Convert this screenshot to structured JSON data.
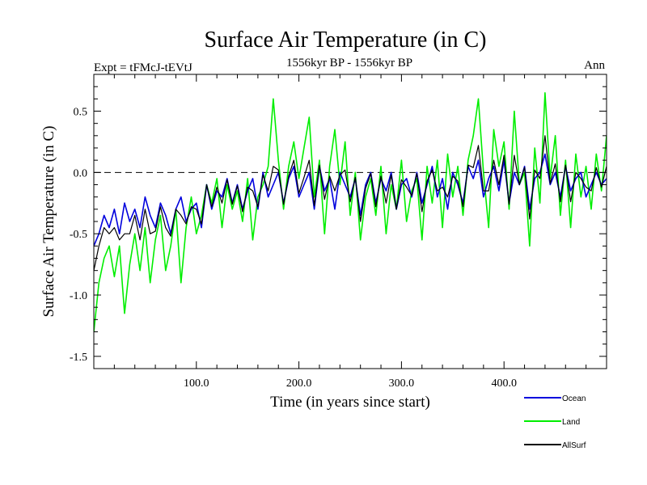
{
  "chart_data": {
    "type": "line",
    "title": "Surface Air Temperature (in C)",
    "subtitle_left": "Expt = tFMcJ-tEVtJ",
    "subtitle_center": "1556kyr BP - 1556kyr BP",
    "subtitle_right": "Ann",
    "xlabel": "Time (in years since start)",
    "ylabel": "Surface Air Temperature (in C)",
    "xlim": [
      0,
      500
    ],
    "ylim": [
      -1.6,
      0.8
    ],
    "xticks": [
      100,
      200,
      300,
      400
    ],
    "xtick_labels": [
      "100.0",
      "200.0",
      "300.0",
      "400.0"
    ],
    "yticks": [
      -1.5,
      -1.0,
      -0.5,
      0.0,
      0.5
    ],
    "ytick_labels": [
      "-1.5",
      "-1.0",
      "-0.5",
      "0.0",
      "0.5"
    ],
    "reference_line": {
      "y": 0.0,
      "style": "dashed"
    },
    "series": [
      {
        "name": "Land",
        "color": "#00ee00",
        "x": [
          0,
          5,
          10,
          15,
          20,
          25,
          30,
          35,
          40,
          45,
          50,
          55,
          60,
          65,
          70,
          75,
          80,
          85,
          90,
          95,
          100,
          105,
          110,
          115,
          120,
          125,
          130,
          135,
          140,
          145,
          150,
          155,
          160,
          165,
          170,
          175,
          180,
          185,
          190,
          195,
          200,
          205,
          210,
          215,
          220,
          225,
          230,
          235,
          240,
          245,
          250,
          255,
          260,
          265,
          270,
          275,
          280,
          285,
          290,
          295,
          300,
          305,
          310,
          315,
          320,
          325,
          330,
          335,
          340,
          345,
          350,
          355,
          360,
          365,
          370,
          375,
          380,
          385,
          390,
          395,
          400,
          405,
          410,
          415,
          420,
          425,
          430,
          435,
          440,
          445,
          450,
          455,
          460,
          465,
          470,
          475,
          480,
          485,
          490,
          495,
          500
        ],
        "values": [
          -1.3,
          -0.9,
          -0.7,
          -0.6,
          -0.85,
          -0.6,
          -1.15,
          -0.75,
          -0.5,
          -0.8,
          -0.45,
          -0.9,
          -0.55,
          -0.35,
          -0.8,
          -0.6,
          -0.3,
          -0.9,
          -0.45,
          -0.2,
          -0.5,
          -0.35,
          -0.1,
          -0.25,
          -0.05,
          -0.45,
          -0.1,
          -0.3,
          -0.15,
          -0.4,
          -0.05,
          -0.55,
          -0.2,
          -0.1,
          0.05,
          0.6,
          0.1,
          -0.3,
          0.05,
          0.25,
          -0.05,
          0.2,
          0.45,
          -0.2,
          0.1,
          -0.5,
          0.05,
          0.35,
          -0.1,
          0.25,
          -0.35,
          0.0,
          -0.55,
          -0.2,
          -0.05,
          -0.35,
          0.05,
          -0.5,
          -0.1,
          -0.3,
          0.1,
          -0.4,
          -0.15,
          -0.05,
          -0.55,
          0.05,
          -0.25,
          0.1,
          -0.45,
          0.15,
          -0.2,
          0.05,
          -0.35,
          0.1,
          0.3,
          0.6,
          0.0,
          -0.45,
          0.35,
          0.05,
          0.25,
          -0.3,
          0.5,
          -0.1,
          0.0,
          -0.6,
          0.2,
          -0.25,
          0.65,
          -0.05,
          0.3,
          -0.35,
          0.1,
          -0.45,
          0.15,
          -0.2,
          0.05,
          -0.3,
          0.15,
          -0.15,
          0.3
        ]
      },
      {
        "name": "Ocean",
        "color": "#0000dd",
        "x": [
          0,
          5,
          10,
          15,
          20,
          25,
          30,
          35,
          40,
          45,
          50,
          55,
          60,
          65,
          70,
          75,
          80,
          85,
          90,
          95,
          100,
          105,
          110,
          115,
          120,
          125,
          130,
          135,
          140,
          145,
          150,
          155,
          160,
          165,
          170,
          175,
          180,
          185,
          190,
          195,
          200,
          205,
          210,
          215,
          220,
          225,
          230,
          235,
          240,
          245,
          250,
          255,
          260,
          265,
          270,
          275,
          280,
          285,
          290,
          295,
          300,
          305,
          310,
          315,
          320,
          325,
          330,
          335,
          340,
          345,
          350,
          355,
          360,
          365,
          370,
          375,
          380,
          385,
          390,
          395,
          400,
          405,
          410,
          415,
          420,
          425,
          430,
          435,
          440,
          445,
          450,
          455,
          460,
          465,
          470,
          475,
          480,
          485,
          490,
          495,
          500
        ],
        "values": [
          -0.6,
          -0.5,
          -0.35,
          -0.45,
          -0.3,
          -0.5,
          -0.25,
          -0.4,
          -0.3,
          -0.45,
          -0.2,
          -0.35,
          -0.45,
          -0.25,
          -0.35,
          -0.5,
          -0.3,
          -0.2,
          -0.4,
          -0.3,
          -0.25,
          -0.45,
          -0.1,
          -0.3,
          -0.15,
          -0.2,
          -0.05,
          -0.25,
          -0.1,
          -0.3,
          -0.15,
          -0.05,
          -0.3,
          0.0,
          -0.2,
          -0.1,
          0.0,
          -0.25,
          -0.05,
          0.05,
          -0.2,
          -0.1,
          0.0,
          -0.3,
          0.05,
          -0.15,
          -0.05,
          -0.3,
          0.0,
          -0.1,
          -0.2,
          -0.05,
          -0.35,
          -0.1,
          0.0,
          -0.25,
          -0.05,
          -0.15,
          0.0,
          -0.3,
          -0.1,
          -0.05,
          -0.2,
          0.0,
          -0.25,
          -0.1,
          0.05,
          -0.2,
          -0.05,
          -0.3,
          0.0,
          -0.1,
          -0.25,
          0.05,
          -0.05,
          0.1,
          -0.2,
          -0.05,
          0.05,
          -0.15,
          0.1,
          -0.25,
          0.0,
          -0.1,
          0.05,
          -0.3,
          -0.05,
          0.0,
          0.15,
          -0.1,
          0.0,
          -0.2,
          0.05,
          -0.15,
          -0.05,
          0.0,
          -0.2,
          -0.1,
          0.0,
          -0.1,
          -0.05
        ]
      },
      {
        "name": "AllSurf",
        "color": "#000000",
        "x": [
          0,
          5,
          10,
          15,
          20,
          25,
          30,
          35,
          40,
          45,
          50,
          55,
          60,
          65,
          70,
          75,
          80,
          85,
          90,
          95,
          100,
          105,
          110,
          115,
          120,
          125,
          130,
          135,
          140,
          145,
          150,
          155,
          160,
          165,
          170,
          175,
          180,
          185,
          190,
          195,
          200,
          205,
          210,
          215,
          220,
          225,
          230,
          235,
          240,
          245,
          250,
          255,
          260,
          265,
          270,
          275,
          280,
          285,
          290,
          295,
          300,
          305,
          310,
          315,
          320,
          325,
          330,
          335,
          340,
          345,
          350,
          355,
          360,
          365,
          370,
          375,
          380,
          385,
          390,
          395,
          400,
          405,
          410,
          415,
          420,
          425,
          430,
          435,
          440,
          445,
          450,
          455,
          460,
          465,
          470,
          475,
          480,
          485,
          490,
          495,
          500
        ],
        "values": [
          -0.8,
          -0.6,
          -0.45,
          -0.5,
          -0.45,
          -0.55,
          -0.5,
          -0.5,
          -0.35,
          -0.55,
          -0.3,
          -0.5,
          -0.48,
          -0.28,
          -0.45,
          -0.52,
          -0.3,
          -0.35,
          -0.42,
          -0.28,
          -0.3,
          -0.42,
          -0.1,
          -0.28,
          -0.12,
          -0.25,
          -0.06,
          -0.26,
          -0.11,
          -0.32,
          -0.12,
          -0.15,
          -0.28,
          -0.02,
          -0.15,
          0.05,
          0.02,
          -0.26,
          -0.03,
          0.1,
          -0.17,
          -0.04,
          0.1,
          -0.27,
          0.06,
          -0.22,
          -0.03,
          -0.15,
          -0.02,
          0.02,
          -0.24,
          -0.04,
          -0.4,
          -0.13,
          -0.01,
          -0.28,
          -0.03,
          -0.25,
          -0.02,
          -0.3,
          -0.06,
          -0.12,
          -0.19,
          -0.01,
          -0.32,
          -0.07,
          0.02,
          -0.15,
          -0.12,
          -0.2,
          -0.03,
          -0.07,
          -0.28,
          0.06,
          0.04,
          0.22,
          -0.15,
          -0.15,
          0.1,
          -0.1,
          0.14,
          -0.26,
          0.14,
          -0.1,
          0.04,
          -0.38,
          0.02,
          -0.05,
          0.3,
          -0.09,
          0.07,
          -0.24,
          0.06,
          -0.24,
          0.0,
          -0.05,
          -0.12,
          -0.15,
          0.04,
          -0.12,
          0.05
        ]
      }
    ],
    "legend_position": "bottom-right"
  }
}
